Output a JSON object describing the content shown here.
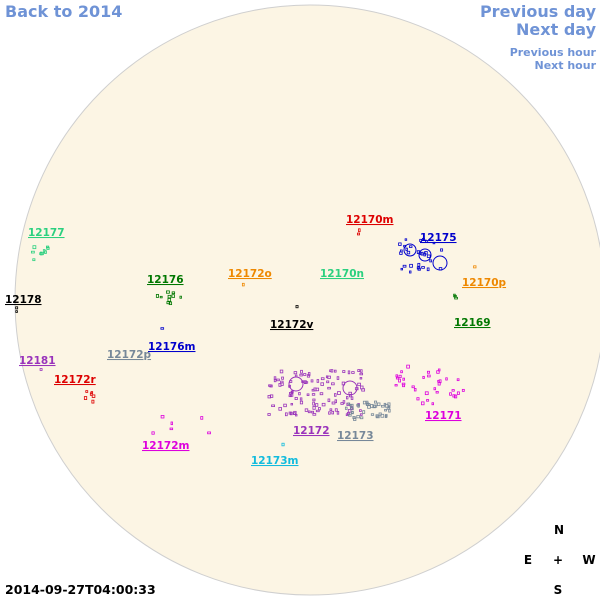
{
  "navigation": {
    "back": "Back to 2014",
    "previous_day": "Previous day",
    "next_day": "Next day",
    "previous_hour": "Previous hour",
    "next_hour": "Next hour"
  },
  "regions": [
    {
      "label": "12177",
      "color": "#2bd07f"
    },
    {
      "label": "12170m",
      "color": "#dd0000"
    },
    {
      "label": "12175",
      "color": "#0000cc"
    },
    {
      "label": "12176",
      "color": "#007700"
    },
    {
      "label": "12172o",
      "color": "#ee8800"
    },
    {
      "label": "12170n",
      "color": "#2bd07f"
    },
    {
      "label": "12170p",
      "color": "#ee8800"
    },
    {
      "label": "12178",
      "color": "#000000"
    },
    {
      "label": "12172v",
      "color": "#000000"
    },
    {
      "label": "12169",
      "color": "#007700"
    },
    {
      "label": "12176m",
      "color": "#0000cc"
    },
    {
      "label": "12172p",
      "color": "#778899"
    },
    {
      "label": "12181",
      "color": "#9933bb"
    },
    {
      "label": "12172r",
      "color": "#dd0000"
    },
    {
      "label": "12171",
      "color": "#dd00dd"
    },
    {
      "label": "12172m",
      "color": "#dd00dd"
    },
    {
      "label": "12172",
      "color": "#9933bb"
    },
    {
      "label": "12173",
      "color": "#778899"
    },
    {
      "label": "12173m",
      "color": "#11bbdd"
    }
  ],
  "compass": {
    "north": "N",
    "east": "E",
    "center": "+",
    "west": "W",
    "south": "S"
  },
  "timestamp": "2014-09-27T04:00:33"
}
